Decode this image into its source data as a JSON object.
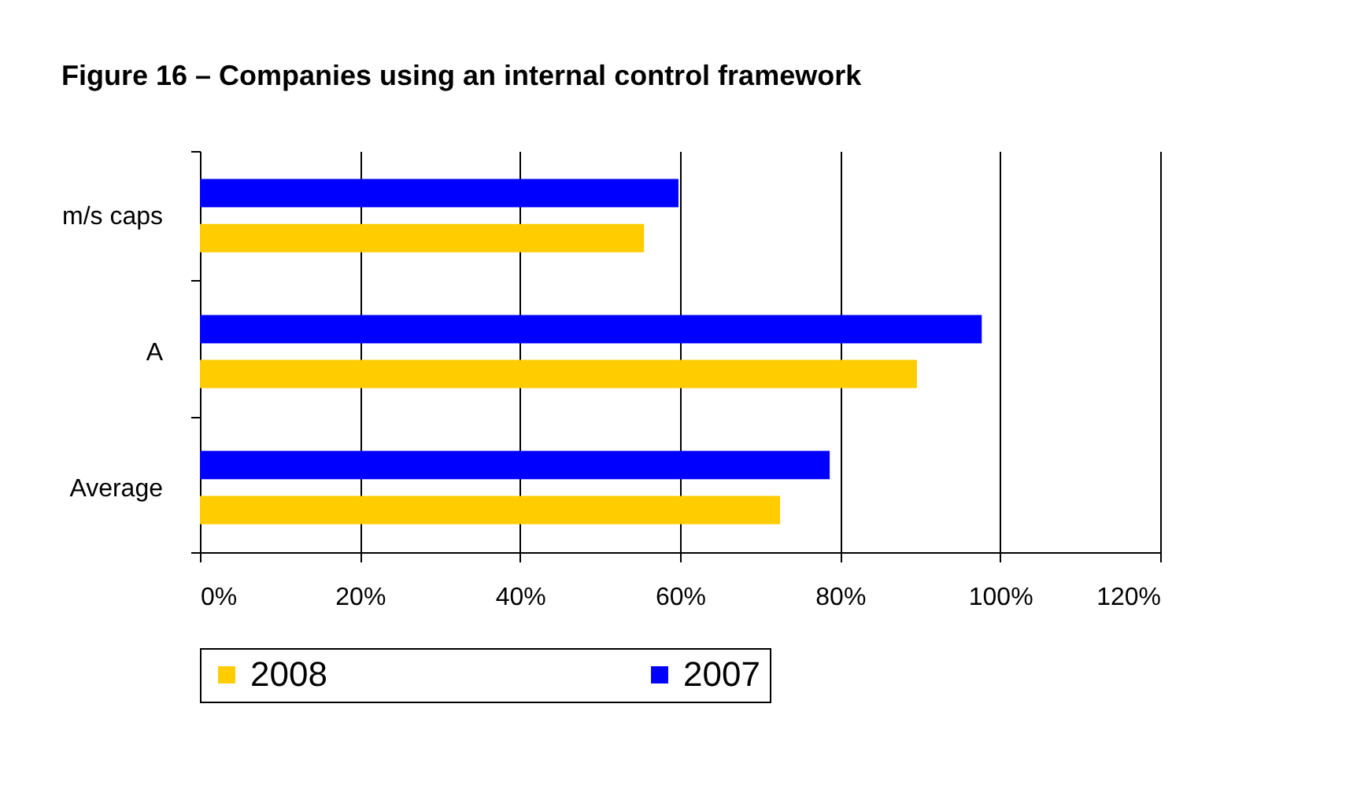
{
  "chart_data": {
    "type": "bar",
    "orientation": "horizontal",
    "title": "Figure 16 – Companies using an internal control framework",
    "categories": [
      "m/s caps",
      "A",
      "Average"
    ],
    "series": [
      {
        "name": "2008",
        "color": "#ffcc00",
        "values": [
          55.5,
          89.6,
          72.5
        ]
      },
      {
        "name": "2007",
        "color": "#0000ff",
        "values": [
          59.8,
          97.7,
          78.7
        ]
      }
    ],
    "xlim": [
      0,
      120
    ],
    "xticks": [
      {
        "value": 0,
        "label": "0%"
      },
      {
        "value": 20,
        "label": "20%"
      },
      {
        "value": 40,
        "label": "40%"
      },
      {
        "value": 60,
        "label": "60%"
      },
      {
        "value": 80,
        "label": "80%"
      },
      {
        "value": 100,
        "label": "100%"
      },
      {
        "value": 120,
        "label": "120%"
      }
    ],
    "grid": "x",
    "legend": "bottom"
  }
}
